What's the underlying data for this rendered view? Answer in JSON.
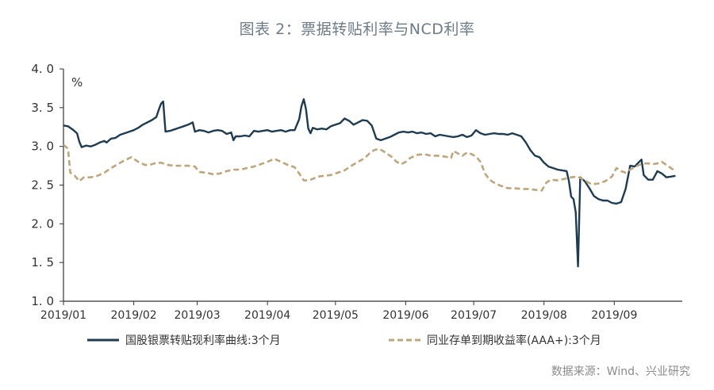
{
  "chart_data": {
    "type": "line",
    "title": "图表 2：票据转贴利率与NCD利率",
    "ylabel": "%",
    "ylim": [
      1.0,
      4.0
    ],
    "yticks": [
      "4. 0",
      "3. 5",
      "3. 0",
      "2. 5",
      "2. 0",
      "1. 5",
      "1. 0"
    ],
    "xticks": [
      "2019/01",
      "2019/02",
      "2019/03",
      "2019/04",
      "2019/05",
      "2019/06",
      "2019/07",
      "2019/08",
      "2019/09"
    ],
    "x_note": "x values are day index counted from 2019/01/01 (0 = Jan 1)",
    "grid": false,
    "legend_position": "bottom",
    "series": [
      {
        "name": "国股银票转贴现利率曲线:3个月",
        "color": "#1d3b52",
        "style": "solid",
        "points": [
          [
            0,
            3.27
          ],
          [
            2,
            3.26
          ],
          [
            4,
            3.22
          ],
          [
            6,
            3.17
          ],
          [
            7,
            3.06
          ],
          [
            8,
            2.99
          ],
          [
            10,
            3.01
          ],
          [
            12,
            3.0
          ],
          [
            14,
            3.02
          ],
          [
            16,
            3.05
          ],
          [
            18,
            3.07
          ],
          [
            19,
            3.05
          ],
          [
            21,
            3.1
          ],
          [
            23,
            3.11
          ],
          [
            25,
            3.15
          ],
          [
            27,
            3.17
          ],
          [
            29,
            3.19
          ],
          [
            31,
            3.21
          ],
          [
            33,
            3.24
          ],
          [
            35,
            3.28
          ],
          [
            37,
            3.31
          ],
          [
            39,
            3.34
          ],
          [
            41,
            3.38
          ],
          [
            42,
            3.47
          ],
          [
            43,
            3.55
          ],
          [
            44,
            3.58
          ],
          [
            45,
            3.19
          ],
          [
            47,
            3.2
          ],
          [
            49,
            3.22
          ],
          [
            51,
            3.24
          ],
          [
            53,
            3.26
          ],
          [
            55,
            3.28
          ],
          [
            57,
            3.31
          ],
          [
            58,
            3.19
          ],
          [
            60,
            3.21
          ],
          [
            62,
            3.2
          ],
          [
            64,
            3.18
          ],
          [
            66,
            3.2
          ],
          [
            68,
            3.21
          ],
          [
            70,
            3.2
          ],
          [
            72,
            3.16
          ],
          [
            74,
            3.18
          ],
          [
            75,
            3.08
          ],
          [
            76,
            3.13
          ],
          [
            78,
            3.13
          ],
          [
            80,
            3.14
          ],
          [
            82,
            3.13
          ],
          [
            84,
            3.2
          ],
          [
            86,
            3.19
          ],
          [
            88,
            3.2
          ],
          [
            90,
            3.21
          ],
          [
            92,
            3.19
          ],
          [
            94,
            3.2
          ],
          [
            96,
            3.21
          ],
          [
            98,
            3.19
          ],
          [
            100,
            3.21
          ],
          [
            102,
            3.21
          ],
          [
            104,
            3.35
          ],
          [
            105,
            3.52
          ],
          [
            106,
            3.61
          ],
          [
            107,
            3.48
          ],
          [
            108,
            3.23
          ],
          [
            109,
            3.17
          ],
          [
            110,
            3.24
          ],
          [
            112,
            3.22
          ],
          [
            114,
            3.23
          ],
          [
            116,
            3.22
          ],
          [
            118,
            3.26
          ],
          [
            120,
            3.28
          ],
          [
            122,
            3.3
          ],
          [
            124,
            3.36
          ],
          [
            126,
            3.33
          ],
          [
            128,
            3.28
          ],
          [
            130,
            3.31
          ],
          [
            132,
            3.34
          ],
          [
            134,
            3.33
          ],
          [
            136,
            3.27
          ],
          [
            138,
            3.1
          ],
          [
            140,
            3.08
          ],
          [
            142,
            3.1
          ],
          [
            144,
            3.12
          ],
          [
            146,
            3.15
          ],
          [
            148,
            3.18
          ],
          [
            150,
            3.19
          ],
          [
            152,
            3.18
          ],
          [
            154,
            3.19
          ],
          [
            156,
            3.17
          ],
          [
            158,
            3.18
          ],
          [
            160,
            3.16
          ],
          [
            162,
            3.17
          ],
          [
            164,
            3.13
          ],
          [
            166,
            3.15
          ],
          [
            168,
            3.14
          ],
          [
            170,
            3.13
          ],
          [
            172,
            3.12
          ],
          [
            174,
            3.13
          ],
          [
            176,
            3.15
          ],
          [
            178,
            3.12
          ],
          [
            180,
            3.14
          ],
          [
            182,
            3.21
          ],
          [
            184,
            3.17
          ],
          [
            186,
            3.15
          ],
          [
            188,
            3.16
          ],
          [
            190,
            3.17
          ],
          [
            192,
            3.16
          ],
          [
            194,
            3.16
          ],
          [
            196,
            3.15
          ],
          [
            198,
            3.17
          ],
          [
            200,
            3.15
          ],
          [
            202,
            3.13
          ],
          [
            204,
            3.05
          ],
          [
            206,
            2.95
          ],
          [
            208,
            2.88
          ],
          [
            210,
            2.86
          ],
          [
            212,
            2.79
          ],
          [
            214,
            2.74
          ],
          [
            216,
            2.72
          ],
          [
            218,
            2.7
          ],
          [
            220,
            2.69
          ],
          [
            222,
            2.68
          ],
          [
            223,
            2.55
          ],
          [
            224,
            2.35
          ],
          [
            225,
            2.32
          ],
          [
            226,
            2.15
          ],
          [
            227,
            1.45
          ],
          [
            228,
            2.6
          ],
          [
            230,
            2.55
          ],
          [
            232,
            2.46
          ],
          [
            234,
            2.36
          ],
          [
            236,
            2.32
          ],
          [
            238,
            2.3
          ],
          [
            240,
            2.3
          ],
          [
            242,
            2.27
          ],
          [
            244,
            2.26
          ],
          [
            246,
            2.28
          ],
          [
            248,
            2.45
          ],
          [
            250,
            2.75
          ],
          [
            252,
            2.74
          ],
          [
            254,
            2.8
          ],
          [
            255,
            2.83
          ],
          [
            256,
            2.63
          ],
          [
            258,
            2.57
          ],
          [
            260,
            2.57
          ],
          [
            262,
            2.68
          ],
          [
            264,
            2.65
          ],
          [
            266,
            2.6
          ],
          [
            268,
            2.61
          ],
          [
            270,
            2.62
          ]
        ]
      },
      {
        "name": "同业存单到期收益率(AAA+):3个月",
        "color": "#bfa67a",
        "style": "dashed",
        "points": [
          [
            0,
            3.02
          ],
          [
            2,
            2.97
          ],
          [
            3,
            2.66
          ],
          [
            5,
            2.62
          ],
          [
            7,
            2.55
          ],
          [
            9,
            2.6
          ],
          [
            12,
            2.6
          ],
          [
            15,
            2.62
          ],
          [
            18,
            2.66
          ],
          [
            21,
            2.72
          ],
          [
            24,
            2.77
          ],
          [
            27,
            2.82
          ],
          [
            30,
            2.86
          ],
          [
            33,
            2.8
          ],
          [
            36,
            2.76
          ],
          [
            38,
            2.76
          ],
          [
            40,
            2.78
          ],
          [
            43,
            2.79
          ],
          [
            46,
            2.76
          ],
          [
            49,
            2.75
          ],
          [
            52,
            2.75
          ],
          [
            55,
            2.75
          ],
          [
            58,
            2.74
          ],
          [
            60,
            2.67
          ],
          [
            63,
            2.66
          ],
          [
            66,
            2.64
          ],
          [
            69,
            2.65
          ],
          [
            72,
            2.68
          ],
          [
            75,
            2.7
          ],
          [
            78,
            2.7
          ],
          [
            81,
            2.72
          ],
          [
            84,
            2.74
          ],
          [
            87,
            2.77
          ],
          [
            90,
            2.8
          ],
          [
            93,
            2.84
          ],
          [
            96,
            2.8
          ],
          [
            99,
            2.76
          ],
          [
            102,
            2.73
          ],
          [
            104,
            2.65
          ],
          [
            106,
            2.56
          ],
          [
            108,
            2.56
          ],
          [
            110,
            2.58
          ],
          [
            112,
            2.61
          ],
          [
            115,
            2.62
          ],
          [
            118,
            2.63
          ],
          [
            121,
            2.66
          ],
          [
            124,
            2.69
          ],
          [
            127,
            2.75
          ],
          [
            130,
            2.8
          ],
          [
            133,
            2.85
          ],
          [
            135,
            2.91
          ],
          [
            137,
            2.95
          ],
          [
            139,
            2.97
          ],
          [
            141,
            2.94
          ],
          [
            143,
            2.9
          ],
          [
            145,
            2.86
          ],
          [
            147,
            2.8
          ],
          [
            149,
            2.77
          ],
          [
            151,
            2.8
          ],
          [
            153,
            2.85
          ],
          [
            156,
            2.89
          ],
          [
            159,
            2.9
          ],
          [
            162,
            2.88
          ],
          [
            165,
            2.88
          ],
          [
            168,
            2.87
          ],
          [
            171,
            2.85
          ],
          [
            172,
            2.94
          ],
          [
            174,
            2.91
          ],
          [
            176,
            2.88
          ],
          [
            178,
            2.92
          ],
          [
            180,
            2.9
          ],
          [
            182,
            2.87
          ],
          [
            184,
            2.8
          ],
          [
            186,
            2.65
          ],
          [
            188,
            2.57
          ],
          [
            190,
            2.53
          ],
          [
            193,
            2.49
          ],
          [
            196,
            2.46
          ],
          [
            199,
            2.46
          ],
          [
            202,
            2.45
          ],
          [
            205,
            2.45
          ],
          [
            208,
            2.44
          ],
          [
            211,
            2.43
          ],
          [
            213,
            2.53
          ],
          [
            215,
            2.57
          ],
          [
            218,
            2.56
          ],
          [
            221,
            2.58
          ],
          [
            224,
            2.6
          ],
          [
            227,
            2.61
          ],
          [
            230,
            2.56
          ],
          [
            233,
            2.51
          ],
          [
            236,
            2.52
          ],
          [
            239,
            2.55
          ],
          [
            242,
            2.61
          ],
          [
            244,
            2.72
          ],
          [
            246,
            2.68
          ],
          [
            248,
            2.66
          ],
          [
            250,
            2.7
          ],
          [
            252,
            2.73
          ],
          [
            254,
            2.76
          ],
          [
            256,
            2.78
          ],
          [
            258,
            2.78
          ],
          [
            260,
            2.77
          ],
          [
            262,
            2.78
          ],
          [
            264,
            2.8
          ],
          [
            266,
            2.76
          ],
          [
            268,
            2.72
          ],
          [
            270,
            2.68
          ]
        ]
      }
    ]
  },
  "source": "数据来源：Wind、兴业研究"
}
